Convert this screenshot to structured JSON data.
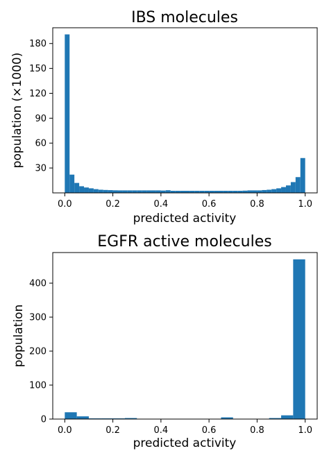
{
  "chart_data": [
    {
      "type": "bar",
      "title": "IBS molecules",
      "xlabel": "predicted activity",
      "ylabel": "population (×1000)",
      "xlim": [
        -0.05,
        1.05
      ],
      "ylim": [
        0,
        199
      ],
      "xticks": [
        "0.0",
        "0.2",
        "0.4",
        "0.6",
        "0.8",
        "1.0"
      ],
      "yticks": [
        "30",
        "60",
        "90",
        "120",
        "150",
        "180"
      ],
      "bin_width": 0.02,
      "bin_start": 0.0,
      "values": [
        191,
        22,
        12,
        8,
        6.5,
        5.5,
        4.5,
        3.8,
        3.5,
        3.3,
        3.1,
        3.0,
        3.0,
        3.0,
        3.0,
        3.0,
        3.0,
        3.0,
        3.0,
        3.0,
        2.8,
        3.2,
        2.5,
        2.5,
        2.5,
        2.5,
        2.5,
        2.5,
        2.5,
        2.5,
        2.5,
        2.5,
        2.5,
        2.5,
        2.5,
        2.5,
        2.5,
        2.7,
        3.0,
        3.0,
        3.0,
        3.4,
        3.8,
        4.5,
        5.5,
        7,
        9,
        13,
        19,
        42
      ],
      "bar_color": "#1f77b4",
      "grid": false
    },
    {
      "type": "bar",
      "title": "EGFR active molecules",
      "xlabel": "predicted activity",
      "ylabel": "population",
      "xlim": [
        -0.05,
        1.05
      ],
      "ylim": [
        0,
        490
      ],
      "xticks": [
        "0.0",
        "0.2",
        "0.4",
        "0.6",
        "0.8",
        "1.0"
      ],
      "yticks": [
        "0",
        "100",
        "200",
        "300",
        "400"
      ],
      "bin_width": 0.05,
      "bin_start": 0.0,
      "values": [
        20,
        8,
        2,
        2,
        2,
        3,
        1,
        0,
        1,
        1,
        1,
        0,
        1,
        5,
        1,
        1,
        1,
        3,
        11,
        470
      ],
      "bar_color": "#1f77b4",
      "grid": false
    }
  ]
}
